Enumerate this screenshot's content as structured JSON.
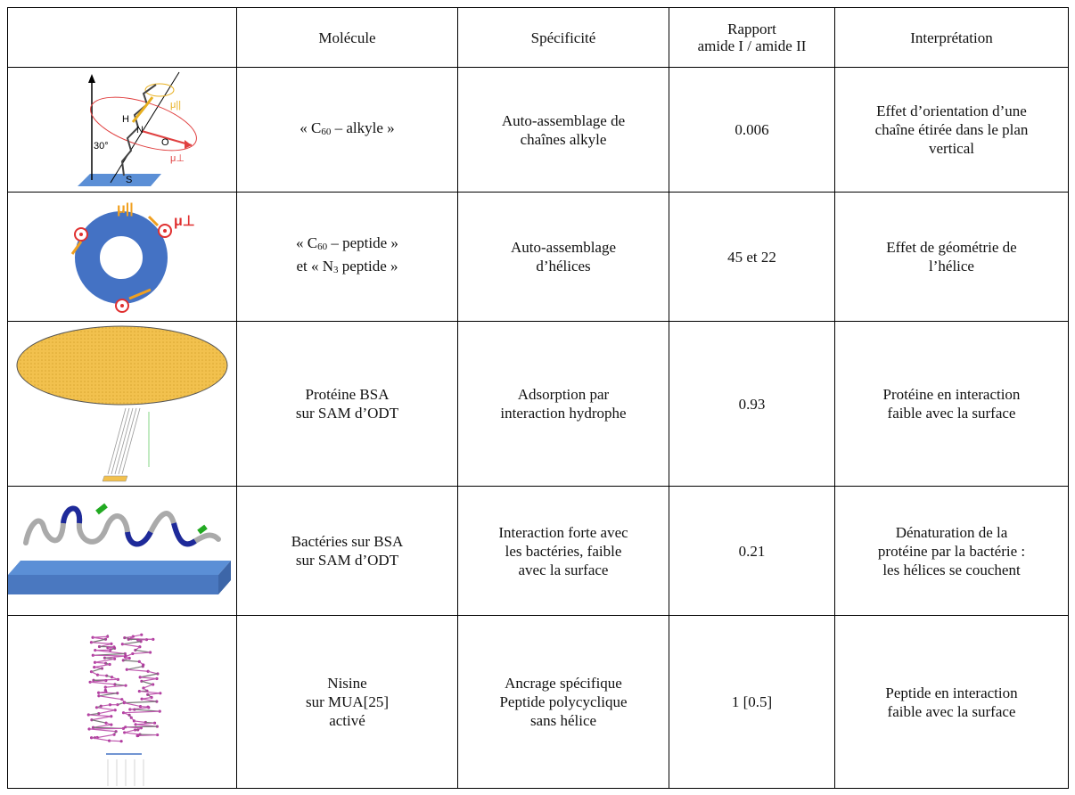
{
  "table": {
    "header": [
      "Molécule",
      "Spécificité",
      [
        "Rapport",
        "amide I / amide II"
      ],
      "Interprétation"
    ],
    "rows": [
      {
        "molecule": [
          {
            "pre": "« C",
            "sub": "60",
            "post": " – alkyle »"
          }
        ],
        "specificity": [
          "Auto-assemblage de",
          "chaînes alkyle"
        ],
        "ratio": "0.006",
        "interpretation": [
          "Effet d’orientation d’une",
          "chaîne étirée dans le plan",
          "vertical"
        ]
      },
      {
        "molecule": [
          {
            "pre": "« C",
            "sub": "60",
            "post": " – peptide »"
          },
          {
            "pre": "et « N",
            "sub": "3",
            "post": " peptide »"
          }
        ],
        "specificity": [
          "Auto-assemblage",
          "d’hélices"
        ],
        "ratio": "45 et 22",
        "interpretation": [
          "Effet de géométrie de",
          "l’hélice"
        ]
      },
      {
        "molecule": [
          "Protéine BSA",
          "sur SAM d’ODT"
        ],
        "specificity": [
          "Adsorption par",
          "interaction hydrophe"
        ],
        "ratio": "0.93",
        "interpretation": [
          "Protéine en interaction",
          "faible avec la surface"
        ]
      },
      {
        "molecule": [
          "Bactéries sur BSA",
          "sur SAM d’ODT"
        ],
        "specificity": [
          "Interaction forte avec",
          "les bactéries, faible",
          "avec la surface"
        ],
        "ratio": "0.21",
        "interpretation": [
          "Dénaturation de la",
          "protéine par la bactérie :",
          "les hélices se couchent"
        ]
      },
      {
        "molecule": [
          "Nisine",
          "sur MUA[25]",
          "activé"
        ],
        "specificity": [
          "Ancrage spécifique",
          "Peptide polycyclique",
          "sans hélice"
        ],
        "ratio": "1 [0.5]",
        "interpretation": [
          "Peptide en interaction",
          "faible avec la surface"
        ]
      }
    ]
  },
  "figures": {
    "alkyl": [
      "H",
      "N",
      "O",
      "S",
      "30°",
      "μ||",
      "μ⊥"
    ],
    "helix": [
      "μ||",
      "μ⊥"
    ]
  }
}
